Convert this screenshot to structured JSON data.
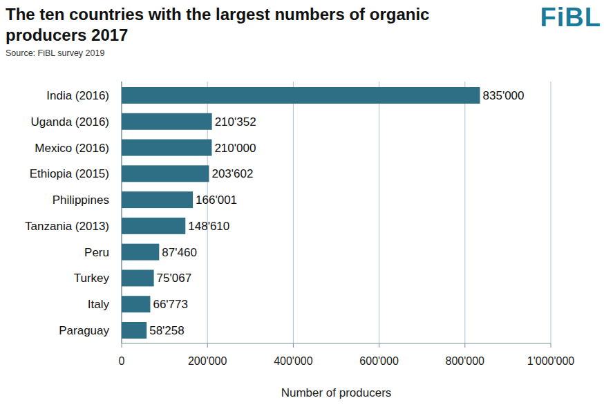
{
  "chart_data": {
    "type": "bar",
    "orientation": "horizontal",
    "title": "The ten countries with the largest numbers of organic producers 2017",
    "subtitle": "Source: FiBL survey 2019",
    "logo": "FiBL",
    "x_label": "Number of producers",
    "categories": [
      "India (2016)",
      "Uganda (2016)",
      "Mexico (2016)",
      "Ethiopia (2015)",
      "Philippines",
      "Tanzania (2013)",
      "Peru",
      "Turkey",
      "Italy",
      "Paraguay"
    ],
    "values": [
      835000,
      210352,
      210000,
      203602,
      166001,
      148610,
      87460,
      75067,
      66773,
      58258
    ],
    "value_labels": [
      "835'000",
      "210'352",
      "210'000",
      "203'602",
      "166'001",
      "148'610",
      "87'460",
      "75'067",
      "66'773",
      "58'258"
    ],
    "color": "#2f6f86",
    "xlim": [
      0,
      1000000
    ],
    "xticks": [
      0,
      {
        "value": 200000,
        "label": "200'000"
      },
      {
        "value": 400000,
        "label": "400'000"
      },
      {
        "value": 600000,
        "label": "600'000"
      },
      {
        "value": 800000,
        "label": "800'000"
      },
      {
        "value": 1000000,
        "label": "1'000'000"
      }
    ],
    "grid": true,
    "data_labels": true
  }
}
